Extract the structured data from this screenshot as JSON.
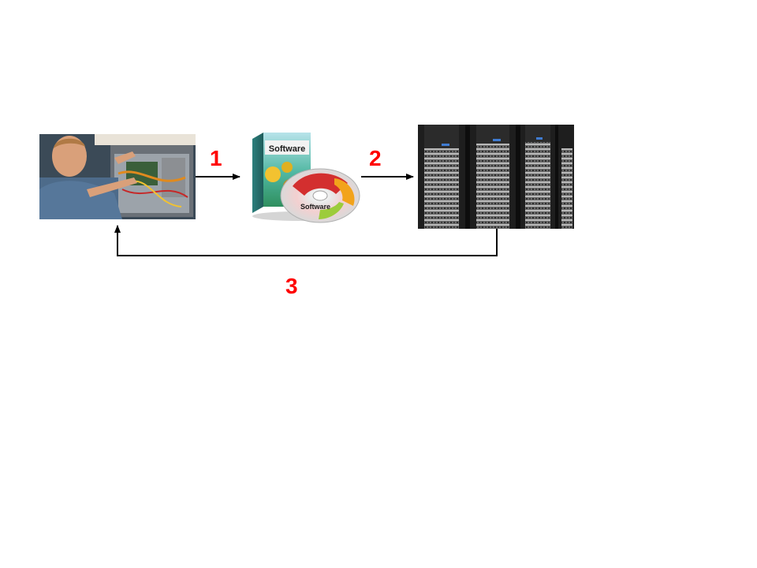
{
  "steps": [
    {
      "label": "1"
    },
    {
      "label": "2"
    },
    {
      "label": "3"
    }
  ],
  "software_box": {
    "box_text": "Software",
    "disc_text": "Software"
  },
  "colors": {
    "step_label": "#ff0000",
    "arrow": "#000000"
  },
  "icons": {
    "technician": "technician-photo",
    "software": "software-box-icon",
    "servers": "server-racks-photo"
  }
}
